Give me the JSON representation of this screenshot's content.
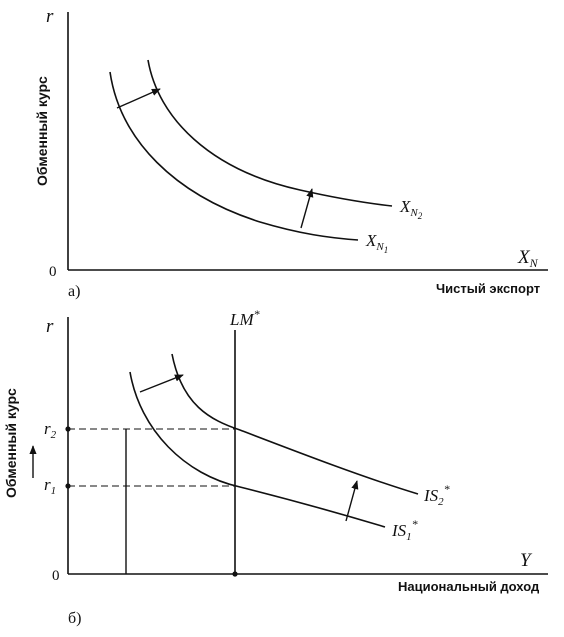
{
  "panel_a": {
    "y_axis_symbol": "r",
    "y_axis_label": "Обменный курс",
    "origin": "0",
    "x_axis_symbol_base": "X",
    "x_axis_symbol_sub": "N",
    "x_axis_label": "Чистый экспорт",
    "panel_label": "а)",
    "curve1_base": "X",
    "curve1_sub": "N",
    "curve1_subsub": "1",
    "curve2_base": "X",
    "curve2_sub": "N",
    "curve2_subsub": "2"
  },
  "panel_b": {
    "y_axis_symbol": "r",
    "y_axis_label": "Обменный курс",
    "origin": "0",
    "x_axis_symbol": "Y",
    "x_axis_label": "Национальный доход",
    "panel_label": "б)",
    "lm_label": "LM",
    "lm_star": "*",
    "r1_base": "r",
    "r1_sub": "1",
    "r2_base": "r",
    "r2_sub": "2",
    "is1_base": "IS",
    "is1_sub": "1",
    "is1_star": "*",
    "is2_base": "IS",
    "is2_sub": "2",
    "is2_star": "*"
  }
}
